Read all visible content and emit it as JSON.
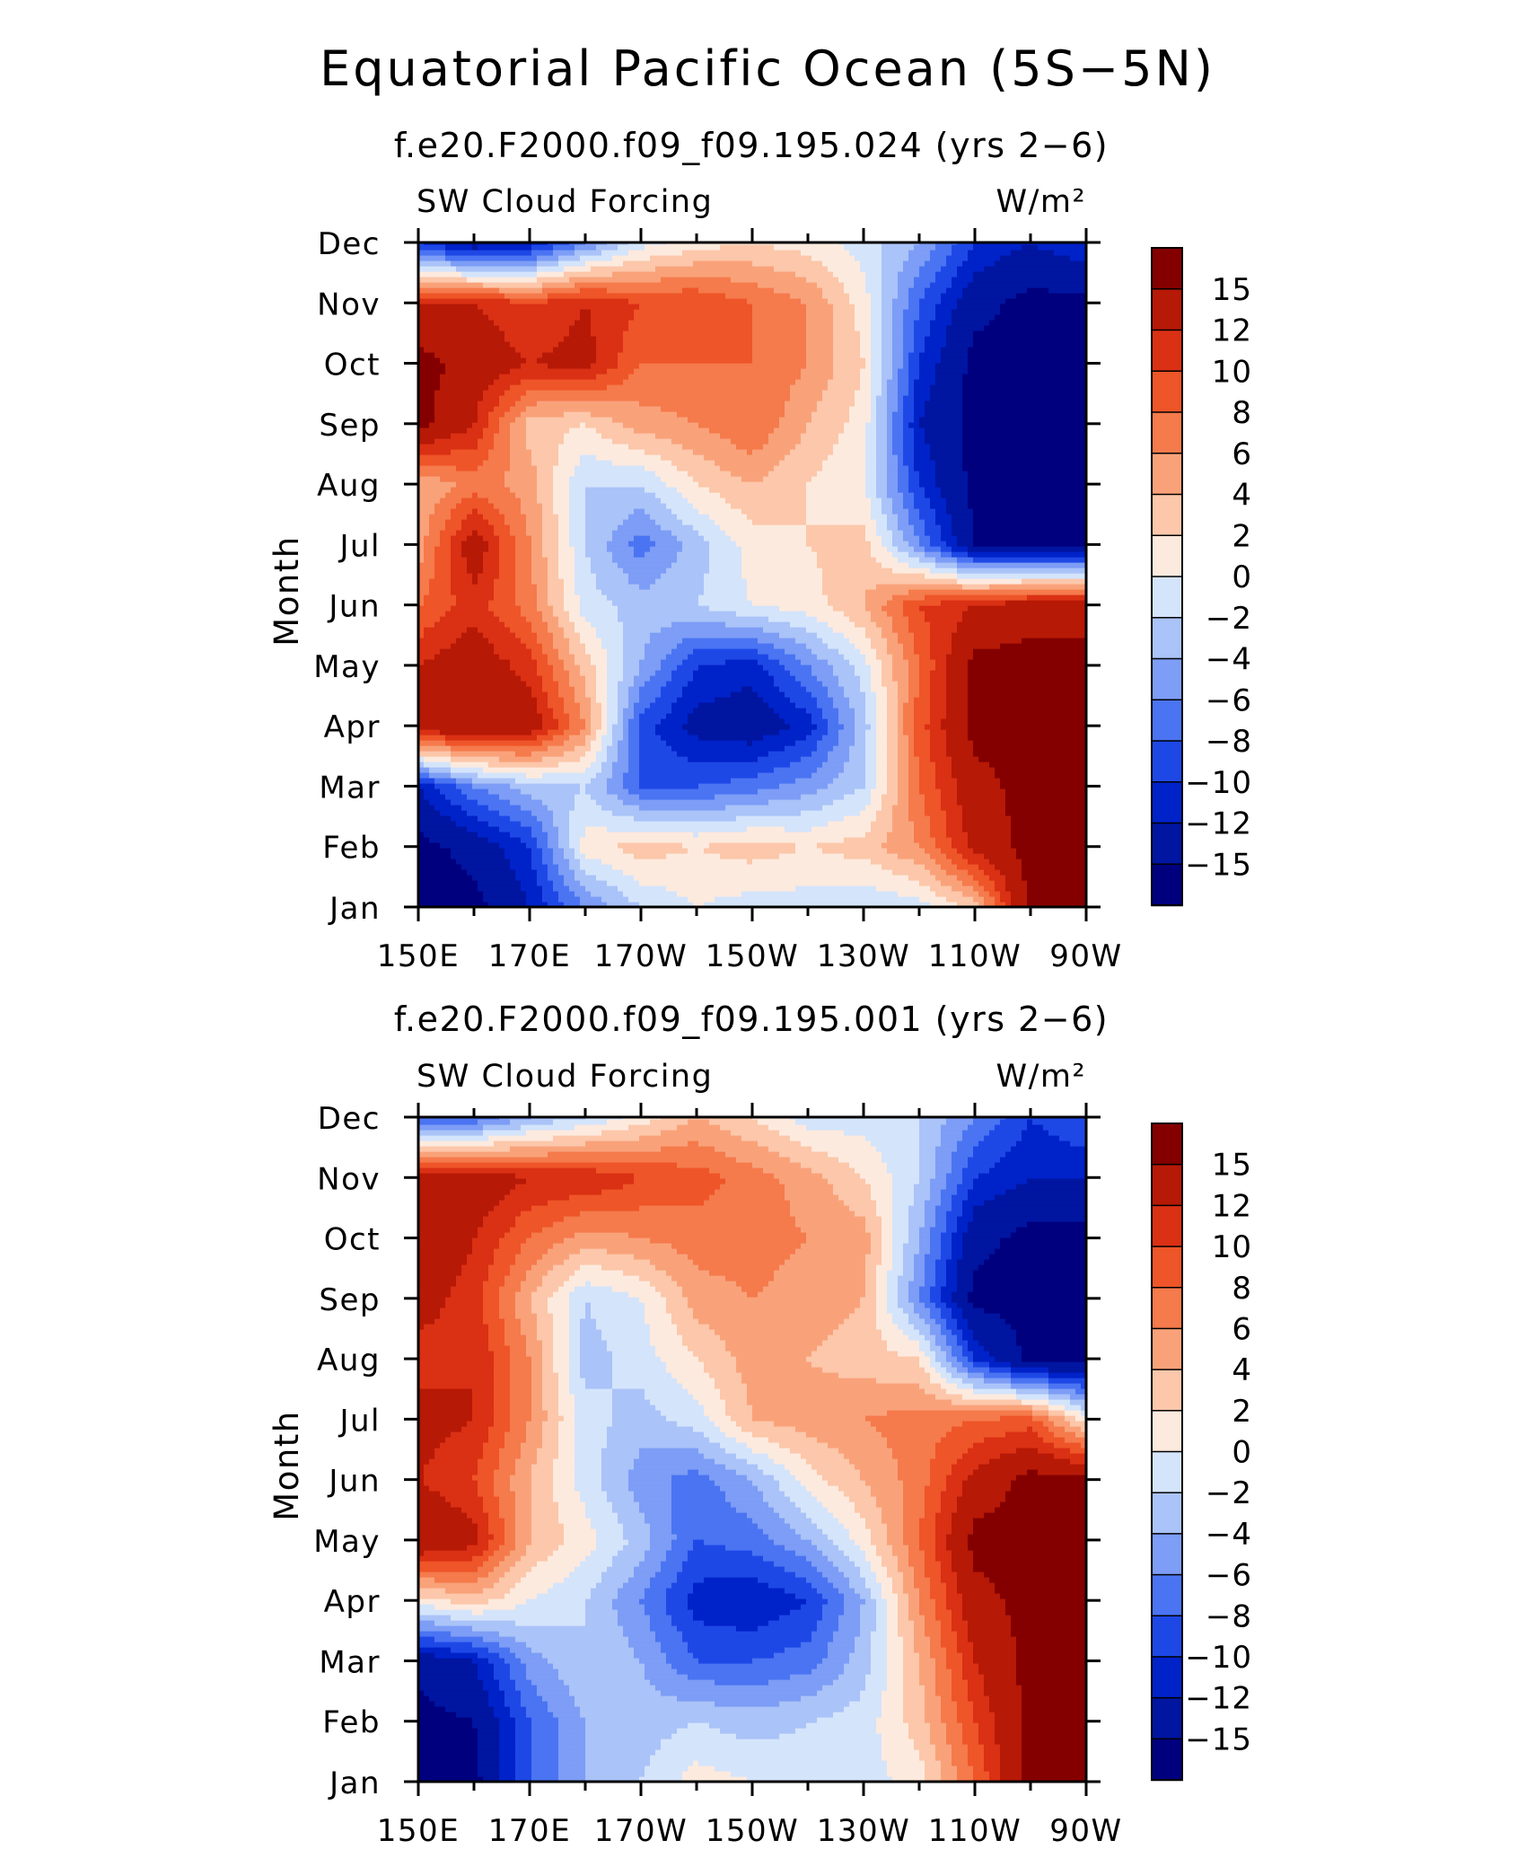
{
  "figure": {
    "title": "Equatorial Pacific Ocean (5S−5N)"
  },
  "chart_data": [
    {
      "type": "heatmap",
      "title": "f.e20.F2000.f09_f09.195.024 (yrs 2−6)",
      "left_label": "SW Cloud Forcing",
      "right_label": "W/m²",
      "ylabel": "Month",
      "xlabel": "",
      "x_ticks": [
        "150E",
        "170E",
        "170W",
        "150W",
        "130W",
        "110W",
        "90W"
      ],
      "y_ticks": [
        "Jan",
        "Feb",
        "Mar",
        "Apr",
        "May",
        "Jun",
        "Jul",
        "Aug",
        "Sep",
        "Oct",
        "Nov",
        "Dec"
      ],
      "colorbar_labels": [
        "15",
        "12",
        "10",
        "8",
        "6",
        "4",
        "2",
        "0",
        "−2",
        "−4",
        "−6",
        "−8",
        "−10",
        "−12",
        "−15"
      ],
      "x": [
        150,
        160,
        170,
        180,
        190,
        200,
        210,
        220,
        230,
        240,
        250,
        260,
        270
      ],
      "y": [
        "Jan",
        "Feb",
        "Mar",
        "Apr",
        "May",
        "Jun",
        "Jul",
        "Aug",
        "Sep",
        "Oct",
        "Nov",
        "Dec"
      ],
      "z": [
        [
          -16,
          -16,
          -12,
          -6,
          -2,
          0,
          -1,
          -1,
          -2,
          -1,
          3,
          16,
          16
        ],
        [
          -16,
          -14,
          -10,
          1,
          3,
          2,
          3,
          2,
          3,
          6,
          13,
          16,
          16
        ],
        [
          -12,
          -6,
          -3,
          -2,
          -8,
          -8,
          -7,
          -5,
          -2,
          8,
          14,
          16,
          16
        ],
        [
          14,
          15,
          14,
          6,
          -9,
          -13,
          -14,
          -11,
          -3,
          9,
          16,
          16,
          16
        ],
        [
          12,
          14,
          11,
          3,
          -4,
          -10,
          -11,
          -6,
          -1,
          8,
          16,
          16,
          16
        ],
        [
          8,
          11,
          7,
          -1,
          -3,
          -2,
          0,
          1,
          4,
          10,
          12,
          14,
          14
        ],
        [
          5,
          14,
          6,
          -2,
          -7,
          -3,
          1,
          2,
          3,
          -6,
          -15,
          -16,
          -16
        ],
        [
          4,
          7,
          5,
          -2,
          -2,
          2,
          4,
          2,
          0,
          -10,
          -16,
          -16,
          -16
        ],
        [
          16,
          12,
          3,
          2,
          5,
          6,
          8,
          4,
          1,
          -12,
          -16,
          -16,
          -16
        ],
        [
          16,
          14,
          12,
          13,
          8,
          8,
          8,
          6,
          2,
          -10,
          -16,
          -16,
          -16
        ],
        [
          12,
          12,
          10,
          12,
          10,
          10,
          8,
          6,
          1,
          -8,
          -14,
          -16,
          -16
        ],
        [
          -10,
          -14,
          -12,
          -6,
          -1,
          1,
          2,
          1,
          -1,
          -4,
          -10,
          -12,
          -10
        ]
      ]
    },
    {
      "type": "heatmap",
      "title": "f.e20.F2000.f09_f09.195.001 (yrs 2−6)",
      "left_label": "SW Cloud Forcing",
      "right_label": "W/m²",
      "ylabel": "Month",
      "xlabel": "",
      "x_ticks": [
        "150E",
        "170E",
        "170W",
        "150W",
        "130W",
        "110W",
        "90W"
      ],
      "y_ticks": [
        "Jan",
        "Feb",
        "Mar",
        "Apr",
        "May",
        "Jun",
        "Jul",
        "Aug",
        "Sep",
        "Oct",
        "Nov",
        "Dec"
      ],
      "colorbar_labels": [
        "15",
        "12",
        "10",
        "8",
        "6",
        "4",
        "2",
        "0",
        "−2",
        "−4",
        "−6",
        "−8",
        "−10",
        "−12",
        "−15"
      ],
      "x": [
        150,
        160,
        170,
        180,
        190,
        200,
        210,
        220,
        230,
        240,
        250,
        260,
        270
      ],
      "y": [
        "Jan",
        "Feb",
        "Mar",
        "Apr",
        "May",
        "Jun",
        "Jul",
        "Aug",
        "Sep",
        "Oct",
        "Nov",
        "Dec"
      ],
      "z": [
        [
          -16,
          -16,
          -8,
          -4,
          -2,
          1,
          0,
          -1,
          -1,
          1,
          8,
          16,
          16
        ],
        [
          -16,
          -15,
          -8,
          -4,
          -3,
          -2,
          -3,
          -2,
          -1,
          3,
          10,
          16,
          16
        ],
        [
          -14,
          -12,
          -5,
          -2,
          -4,
          -8,
          -8,
          -7,
          -3,
          4,
          12,
          16,
          16
        ],
        [
          1,
          3,
          0,
          -2,
          -6,
          -11,
          -12,
          -10,
          -4,
          6,
          14,
          16,
          16
        ],
        [
          15,
          13,
          4,
          1,
          -3,
          -8,
          -7,
          -4,
          1,
          8,
          16,
          16,
          16
        ],
        [
          12,
          10,
          4,
          -1,
          -5,
          -7,
          -4,
          1,
          4,
          7,
          13,
          16,
          16
        ],
        [
          13,
          12,
          6,
          -1,
          -3,
          -1,
          4,
          5,
          6,
          7,
          8,
          9,
          1
        ],
        [
          11,
          12,
          6,
          -3,
          -1,
          2,
          5,
          4,
          3,
          2,
          -10,
          -16,
          -16
        ],
        [
          13,
          11,
          4,
          -2,
          0,
          5,
          6,
          5,
          4,
          -6,
          -16,
          -16,
          -16
        ],
        [
          15,
          12,
          8,
          5,
          6,
          7,
          7,
          6,
          5,
          -4,
          -14,
          -16,
          -16
        ],
        [
          14,
          14,
          12,
          12,
          10,
          9,
          7,
          5,
          2,
          -2,
          -10,
          -12,
          -12
        ],
        [
          -8,
          -8,
          -4,
          -2,
          1,
          4,
          2,
          -1,
          -1,
          -2,
          -6,
          -10,
          -8
        ]
      ]
    }
  ],
  "colors": {
    "levels": [
      -15,
      -12,
      -10,
      -8,
      -6,
      -4,
      -2,
      0,
      2,
      4,
      6,
      8,
      10,
      12,
      15
    ],
    "palette": [
      "#00007f",
      "#0015a0",
      "#0022c9",
      "#1e48e6",
      "#4a74f2",
      "#7d9df6",
      "#aac3f8",
      "#d4e4fb",
      "#fdeade",
      "#fcc7aa",
      "#f9a27a",
      "#f57a4c",
      "#ee5528",
      "#da3014",
      "#b61906",
      "#840000"
    ]
  }
}
